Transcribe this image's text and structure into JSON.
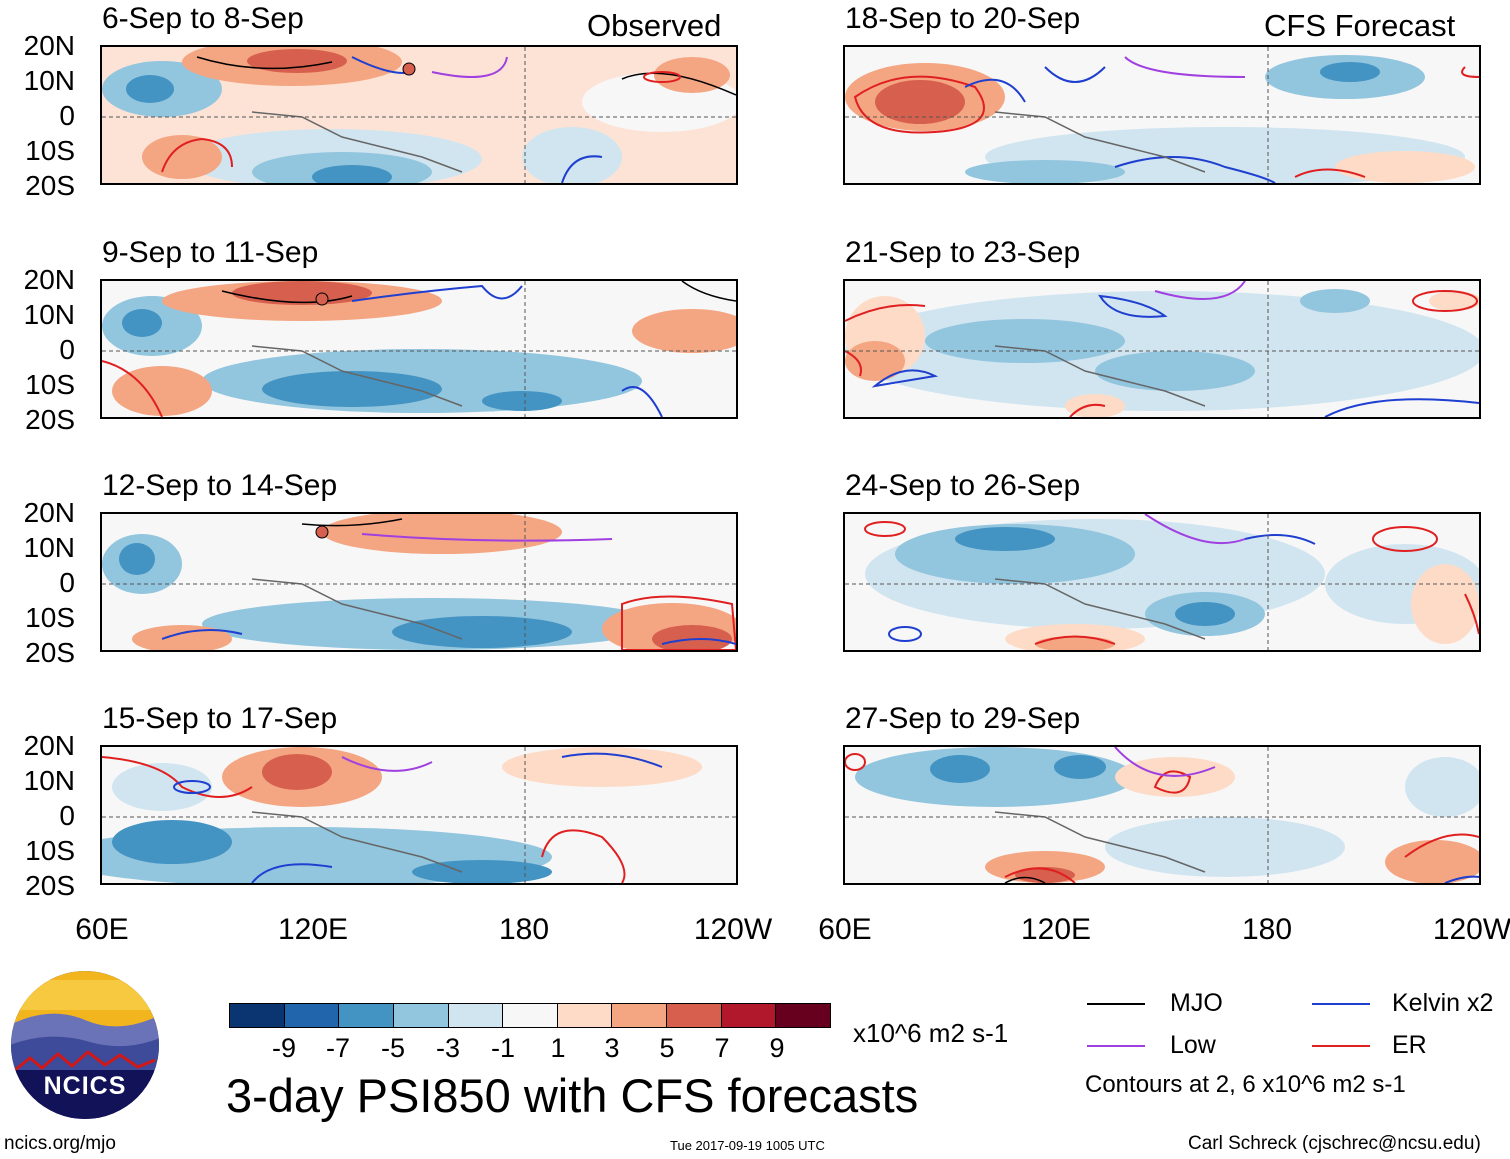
{
  "panels": [
    {
      "title": "6-Sep to 8-Sep",
      "tag": "Observed"
    },
    {
      "title": "9-Sep to 11-Sep",
      "tag": ""
    },
    {
      "title": "12-Sep to 14-Sep",
      "tag": ""
    },
    {
      "title": "15-Sep to 17-Sep",
      "tag": ""
    },
    {
      "title": "18-Sep to 20-Sep",
      "tag": "CFS Forecast"
    },
    {
      "title": "21-Sep to 23-Sep",
      "tag": ""
    },
    {
      "title": "24-Sep to 26-Sep",
      "tag": ""
    },
    {
      "title": "27-Sep to 29-Sep",
      "tag": ""
    }
  ],
  "lat_labels": [
    "20N",
    "10N",
    "0",
    "10S",
    "20S"
  ],
  "lon_labels": [
    "60E",
    "120E",
    "180",
    "120W"
  ],
  "colorbar": {
    "colors": [
      "#0a3570",
      "#2166ac",
      "#4393c3",
      "#92c5de",
      "#d1e5f0",
      "#f7f7f7",
      "#fddbc7",
      "#f4a582",
      "#d6604d",
      "#b2182b",
      "#67001f"
    ],
    "tick_labels": [
      "-9",
      "-7",
      "-5",
      "-3",
      "-1",
      "1",
      "3",
      "5",
      "7",
      "9"
    ],
    "units": "x10^6 m2 s-1"
  },
  "legend": {
    "items": [
      {
        "label": "MJO",
        "color": "#000000"
      },
      {
        "label": "Kelvin x2",
        "color": "#1f3fd0"
      },
      {
        "label": "Low",
        "color": "#a040e0"
      },
      {
        "label": "ER",
        "color": "#e02020"
      }
    ],
    "note": "Contours at 2, 6 x10^6 m2 s-1"
  },
  "main_title": "3-day PSI850 with CFS forecasts",
  "logo_text": "NCICS",
  "footer": {
    "url": "ncics.org/mjo",
    "timestamp": "Tue 2017-09-19 1005 UTC",
    "credit": "Carl Schreck (cjschrec@ncsu.edu)"
  }
}
